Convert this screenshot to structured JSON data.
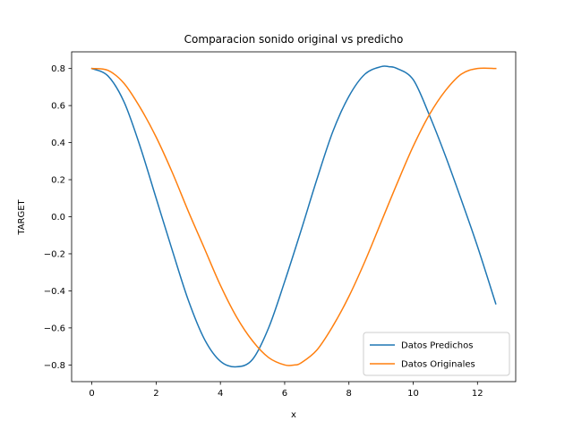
{
  "chart_data": {
    "type": "line",
    "title": "Comparacion sonido original vs predicho",
    "xlabel": "x",
    "ylabel": "TARGET",
    "xlim": [
      -0.63,
      13.19
    ],
    "ylim": [
      -0.89,
      0.89
    ],
    "x_ticks": [
      0,
      2,
      4,
      6,
      8,
      10,
      12
    ],
    "y_ticks": [
      -0.8,
      -0.6,
      -0.4,
      -0.2,
      0.0,
      0.2,
      0.4,
      0.6,
      0.8
    ],
    "x_tick_labels": [
      "0",
      "2",
      "4",
      "6",
      "8",
      "10",
      "12"
    ],
    "y_tick_labels": [
      "−0.8",
      "−0.6",
      "−0.4",
      "−0.2",
      "0.0",
      "0.2",
      "0.4",
      "0.6",
      "0.8"
    ],
    "grid": false,
    "legend_position": "lower-right",
    "series": [
      {
        "name": "Datos Predichos",
        "color": "#1f77b4",
        "x": [
          0.0,
          0.5,
          1.0,
          1.5,
          2.0,
          2.5,
          3.0,
          3.5,
          4.0,
          4.5,
          5.0,
          5.5,
          6.0,
          6.5,
          7.0,
          7.5,
          8.0,
          8.5,
          9.0,
          9.25,
          9.5,
          10.0,
          10.5,
          11.0,
          11.5,
          12.0,
          12.57
        ],
        "y": [
          0.8,
          0.76,
          0.62,
          0.38,
          0.1,
          -0.18,
          -0.45,
          -0.66,
          -0.78,
          -0.81,
          -0.77,
          -0.6,
          -0.35,
          -0.08,
          0.2,
          0.46,
          0.65,
          0.77,
          0.81,
          0.81,
          0.8,
          0.74,
          0.55,
          0.33,
          0.09,
          -0.16,
          -0.47
        ]
      },
      {
        "name": "Datos Originales",
        "color": "#ff7f0e",
        "x": [
          0.0,
          0.5,
          1.0,
          1.5,
          2.0,
          2.5,
          3.0,
          3.5,
          4.0,
          4.5,
          5.0,
          5.5,
          6.0,
          6.3,
          6.5,
          7.0,
          7.5,
          8.0,
          8.5,
          9.0,
          9.5,
          10.0,
          10.5,
          11.0,
          11.5,
          12.0,
          12.57
        ],
        "y": [
          0.8,
          0.79,
          0.72,
          0.59,
          0.43,
          0.24,
          0.03,
          -0.17,
          -0.37,
          -0.54,
          -0.67,
          -0.76,
          -0.8,
          -0.8,
          -0.79,
          -0.72,
          -0.59,
          -0.43,
          -0.24,
          -0.03,
          0.18,
          0.38,
          0.55,
          0.68,
          0.77,
          0.8,
          0.8
        ]
      }
    ]
  }
}
